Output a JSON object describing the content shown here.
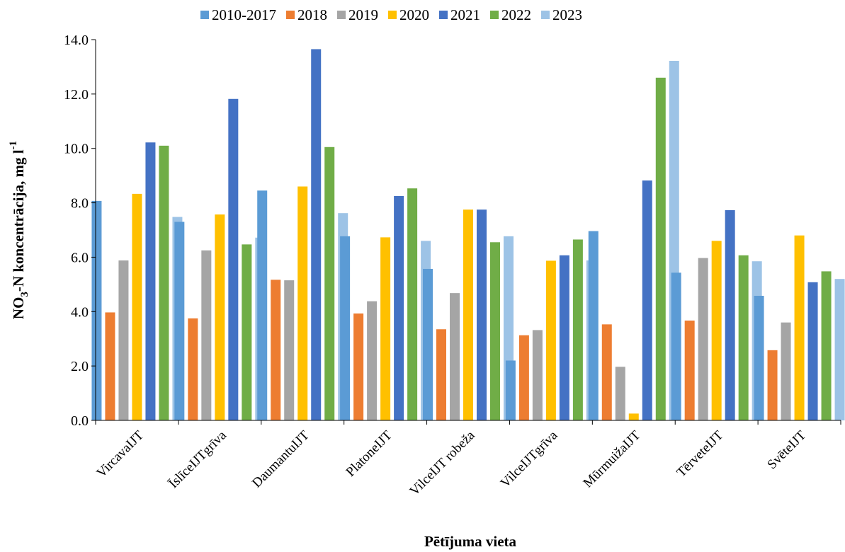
{
  "chart_data": {
    "type": "bar",
    "title": "",
    "xlabel": "Pētījuma vieta",
    "ylabel": {
      "main": "NO",
      "sub": "3",
      "rest": "-N koncentrācija,  mg l",
      "sup": "-1"
    },
    "ylim": [
      0,
      14
    ],
    "yticks": [
      "0.0",
      "2.0",
      "4.0",
      "6.0",
      "8.0",
      "10.0",
      "12.0",
      "14.0"
    ],
    "grid": false,
    "legend_position": "top",
    "categories": [
      "VircavaIJT",
      "ĪslīceIJTgrīva",
      "DaumantuIJT",
      "PlatoneIJT",
      "VilceIJT robeža",
      "VilceIJTgrīva",
      "MūrmuižaIJT",
      "TērveteIJT",
      "SvēteIJT"
    ],
    "series": [
      {
        "name": "2010-2017",
        "color": "#5B9BD5",
        "values": [
          8.07,
          7.3,
          8.45,
          6.77,
          5.57,
          2.2,
          6.96,
          5.43,
          4.58
        ]
      },
      {
        "name": "2018",
        "color": "#ED7D31",
        "values": [
          3.97,
          3.75,
          5.17,
          3.93,
          3.35,
          3.13,
          3.53,
          3.67,
          2.58
        ]
      },
      {
        "name": "2019",
        "color": "#A5A5A5",
        "values": [
          5.88,
          6.25,
          5.15,
          4.38,
          4.68,
          3.32,
          1.97,
          5.97,
          3.6
        ]
      },
      {
        "name": "2020",
        "color": "#FFC000",
        "values": [
          8.33,
          7.57,
          8.6,
          6.73,
          7.75,
          5.87,
          0.25,
          6.6,
          6.8
        ]
      },
      {
        "name": "2021",
        "color": "#4472C4",
        "values": [
          10.22,
          11.82,
          13.65,
          8.25,
          7.75,
          6.07,
          8.82,
          7.73,
          5.08
        ]
      },
      {
        "name": "2022",
        "color": "#70AD47",
        "values": [
          10.1,
          6.47,
          10.05,
          8.53,
          6.55,
          6.65,
          12.6,
          6.07,
          5.48
        ]
      },
      {
        "name": "2023",
        "color": "#9DC3E6",
        "values": [
          7.48,
          6.72,
          7.62,
          6.6,
          6.77,
          5.88,
          13.22,
          5.85,
          5.2
        ]
      }
    ]
  }
}
